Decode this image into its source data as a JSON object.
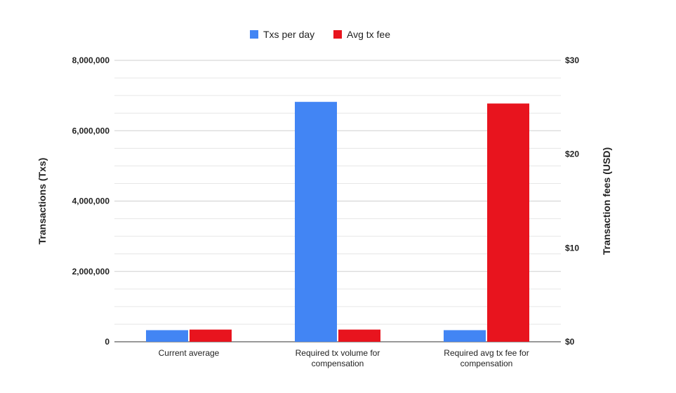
{
  "chart_data": {
    "type": "bar",
    "categories": [
      [
        "Current average"
      ],
      [
        "Required tx volume for",
        "compensation"
      ],
      [
        "Required avg tx fee for",
        "compensation"
      ]
    ],
    "series": [
      {
        "name": "Txs per day",
        "axis": "left",
        "color": "#4285f4",
        "values": [
          330000,
          6820000,
          330000
        ]
      },
      {
        "name": "Avg tx fee",
        "axis": "right",
        "color": "#e8141e",
        "values": [
          1.3,
          1.3,
          25.4
        ]
      }
    ],
    "y_left": {
      "label": "Transactions (Txs)",
      "min": 0,
      "max": 8000000,
      "tick_values": [
        0,
        2000000,
        4000000,
        6000000,
        8000000
      ],
      "tick_labels": [
        "0",
        "2,000,000",
        "4,000,000",
        "6,000,000",
        "8,000,000"
      ]
    },
    "y_right": {
      "label": "Transaction fees (USD)",
      "min": 0,
      "max": 30,
      "tick_values": [
        0,
        10,
        20,
        30
      ],
      "tick_labels": [
        "$0",
        "$10",
        "$20",
        "$30"
      ]
    },
    "grid": true,
    "legend_position": "top-center"
  }
}
